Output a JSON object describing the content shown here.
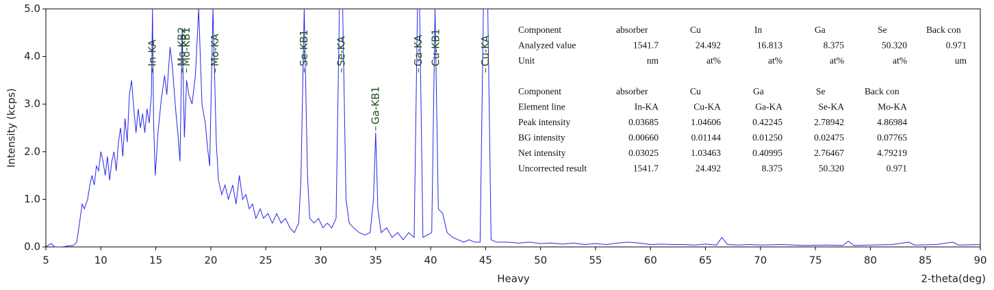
{
  "chart_data": {
    "type": "line",
    "xlabel": "2-theta(deg)",
    "ylabel": "Intensity (kcps)",
    "subtitle": "Heavy",
    "xlim": [
      5,
      90
    ],
    "xticks": [
      5,
      10,
      15,
      20,
      25,
      30,
      35,
      40,
      45,
      50,
      55,
      60,
      65,
      70,
      75,
      80,
      85,
      90
    ],
    "ylim": [
      0,
      5
    ],
    "yticks": [
      {
        "value": 0,
        "label": "0.0"
      },
      {
        "value": 1,
        "label": "1.0"
      },
      {
        "value": 2,
        "label": "2.0"
      },
      {
        "value": 3,
        "label": "3.0"
      },
      {
        "value": 4,
        "label": "4.0"
      },
      {
        "value": 5,
        "label": "5.0"
      }
    ],
    "series": [
      {
        "color": "#2424e6",
        "x": [
          5.0,
          5.3,
          5.5,
          5.8,
          6.5,
          7.0,
          7.5,
          7.8,
          8.0,
          8.3,
          8.5,
          8.8,
          9.0,
          9.2,
          9.4,
          9.6,
          9.8,
          10.0,
          10.2,
          10.4,
          10.6,
          10.8,
          11.0,
          11.2,
          11.4,
          11.6,
          11.8,
          12.0,
          12.2,
          12.4,
          12.6,
          12.8,
          13.0,
          13.2,
          13.4,
          13.6,
          13.8,
          14.0,
          14.2,
          14.4,
          14.6,
          14.7,
          14.8,
          14.95,
          15.2,
          15.5,
          15.8,
          16.0,
          16.3,
          16.5,
          16.8,
          17.0,
          17.2,
          17.4,
          17.6,
          17.8,
          18.0,
          18.3,
          18.6,
          18.9,
          19.2,
          19.5,
          19.7,
          19.9,
          20.2,
          20.5,
          20.7,
          21.0,
          21.3,
          21.6,
          22.0,
          22.3,
          22.6,
          22.9,
          23.2,
          23.5,
          23.8,
          24.1,
          24.5,
          24.8,
          25.2,
          25.6,
          26.0,
          26.4,
          26.8,
          27.2,
          27.6,
          28.0,
          28.2,
          28.5,
          28.8,
          29.0,
          29.4,
          29.8,
          30.2,
          30.6,
          31.0,
          31.4,
          31.7,
          32.0,
          32.3,
          32.6,
          33.0,
          33.5,
          34.0,
          34.5,
          34.8,
          35.0,
          35.2,
          35.5,
          36.0,
          36.5,
          37.0,
          37.5,
          38.0,
          38.5,
          38.8,
          39.0,
          39.3,
          39.7,
          40.1,
          40.4,
          40.7,
          41.1,
          41.5,
          42.0,
          42.5,
          43.0,
          43.5,
          44.0,
          44.5,
          44.8,
          45.2,
          45.5,
          46,
          47,
          48,
          49,
          50,
          51,
          52,
          53,
          54,
          55,
          56,
          57,
          58,
          59,
          60,
          61,
          62,
          63,
          64,
          65,
          66,
          66.5,
          67,
          68,
          69,
          70,
          72,
          74,
          76,
          77.5,
          78,
          78.5,
          80,
          82,
          83.5,
          84,
          86,
          87.5,
          88,
          90
        ],
        "values": [
          0.0,
          0.05,
          0.07,
          0.0,
          0.0,
          0.02,
          0.03,
          0.1,
          0.4,
          0.9,
          0.8,
          1.0,
          1.3,
          1.5,
          1.3,
          1.7,
          1.6,
          2.0,
          1.8,
          1.5,
          1.9,
          1.4,
          1.8,
          2.0,
          1.6,
          2.2,
          2.5,
          1.9,
          2.7,
          2.2,
          3.2,
          3.5,
          2.9,
          2.4,
          2.9,
          2.5,
          2.8,
          2.4,
          2.9,
          2.6,
          3.2,
          5.0,
          2.6,
          1.5,
          2.4,
          3.1,
          3.6,
          3.2,
          4.2,
          3.8,
          2.9,
          2.4,
          1.8,
          4.6,
          2.3,
          3.5,
          3.2,
          3.0,
          3.6,
          5.0,
          3.0,
          2.6,
          2.1,
          1.7,
          5.0,
          2.2,
          1.4,
          1.1,
          1.3,
          1.0,
          1.3,
          0.9,
          1.5,
          1.0,
          1.1,
          0.8,
          0.9,
          0.6,
          0.8,
          0.6,
          0.7,
          0.5,
          0.7,
          0.5,
          0.6,
          0.4,
          0.3,
          0.5,
          1.4,
          5.0,
          1.5,
          0.6,
          0.5,
          0.6,
          0.4,
          0.5,
          0.4,
          0.6,
          5.0,
          5.0,
          1.0,
          0.5,
          0.4,
          0.3,
          0.25,
          0.3,
          1.0,
          2.4,
          0.8,
          0.3,
          0.4,
          0.2,
          0.3,
          0.15,
          0.3,
          0.2,
          5.0,
          5.0,
          0.2,
          0.25,
          0.3,
          5.0,
          0.8,
          0.7,
          0.3,
          0.2,
          0.15,
          0.1,
          0.15,
          0.1,
          0.1,
          5.0,
          5.0,
          0.15,
          0.1,
          0.1,
          0.08,
          0.1,
          0.07,
          0.08,
          0.06,
          0.08,
          0.05,
          0.07,
          0.05,
          0.08,
          0.1,
          0.08,
          0.05,
          0.06,
          0.05,
          0.05,
          0.04,
          0.06,
          0.04,
          0.2,
          0.05,
          0.04,
          0.05,
          0.04,
          0.05,
          0.03,
          0.04,
          0.03,
          0.12,
          0.03,
          0.04,
          0.05,
          0.1,
          0.04,
          0.05,
          0.1,
          0.04,
          0.05
        ]
      }
    ],
    "annotations": [
      {
        "text": "In-KA",
        "x": 14.7
      },
      {
        "text": "Mo-KB2",
        "x": 17.4
      },
      {
        "text": "Mo-KB1",
        "x": 17.8
      },
      {
        "text": "Mo-KA",
        "x": 20.4
      },
      {
        "text": "Se-KB1",
        "x": 28.5
      },
      {
        "text": "Se-KA",
        "x": 31.9
      },
      {
        "text": "Ga-KB1",
        "x": 35.0,
        "y": 2.4
      },
      {
        "text": "Ga-KA",
        "x": 38.9
      },
      {
        "text": "Cu-KB1",
        "x": 40.5
      },
      {
        "text": "Cu-KA",
        "x": 45.0
      }
    ]
  },
  "tables": [
    {
      "rows": [
        [
          "Component",
          "absorber",
          "Cu",
          "In",
          "Ga",
          "Se",
          "Back con"
        ],
        [
          "Analyzed value",
          "1541.7",
          "24.492",
          "16.813",
          "8.375",
          "50.320",
          "0.971"
        ],
        [
          "Unit",
          "nm",
          "at%",
          "at%",
          "at%",
          "at%",
          "um"
        ]
      ]
    },
    {
      "rows": [
        [
          "Component",
          "absorber",
          "Cu",
          "Ga",
          "Se",
          "Back con"
        ],
        [
          "Element line",
          "In-KA",
          "Cu-KA",
          "Ga-KA",
          "Se-KA",
          "Mo-KA"
        ],
        [
          "Peak intensity",
          "0.03685",
          "1.04606",
          "0.42245",
          "2.78942",
          "4.86984"
        ],
        [
          "BG intensity",
          "0.00660",
          "0.01144",
          "0.01250",
          "0.02475",
          "0.07765"
        ],
        [
          "Net intensity",
          "0.03025",
          "1.03463",
          "0.40995",
          "2.76467",
          "4.79219"
        ],
        [
          "Uncorrected result",
          "1541.7",
          "24.492",
          "8.375",
          "50.320",
          "0.971"
        ]
      ]
    }
  ]
}
